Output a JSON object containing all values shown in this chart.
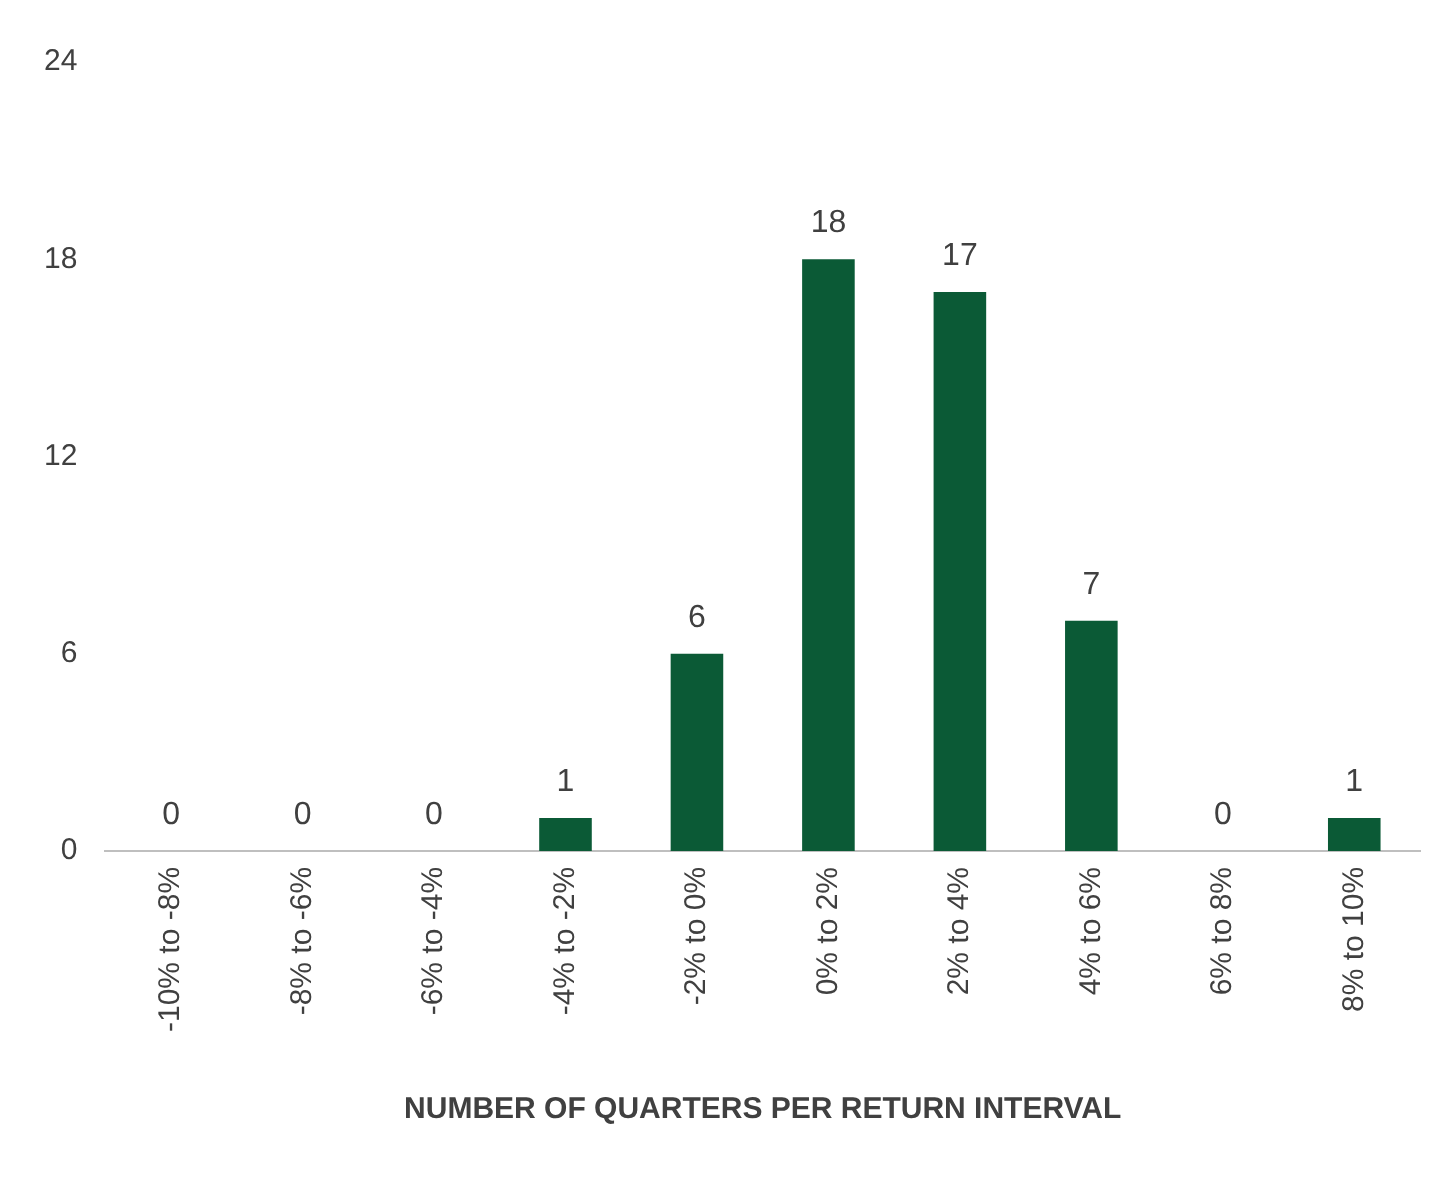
{
  "chart_data": {
    "type": "bar",
    "xlabel": "NUMBER OF QUARTERS PER RETURN INTERVAL",
    "categories": [
      "-10% to -8%",
      "-8% to -6%",
      "-6% to -4%",
      "-4% to -2%",
      "-2% to 0%",
      "0% to 2%",
      "2% to 4%",
      "4% to 6%",
      "6% to 8%",
      "8% to 10%"
    ],
    "series": [
      {
        "color": "#0b5a36",
        "values": [
          0,
          0,
          0,
          1,
          6,
          18,
          17,
          7,
          0,
          1
        ]
      }
    ],
    "ylim": [
      0,
      24
    ],
    "yticks": [
      0,
      6,
      12,
      18,
      24
    ],
    "grid": false,
    "data_labels": true,
    "legend": false
  }
}
